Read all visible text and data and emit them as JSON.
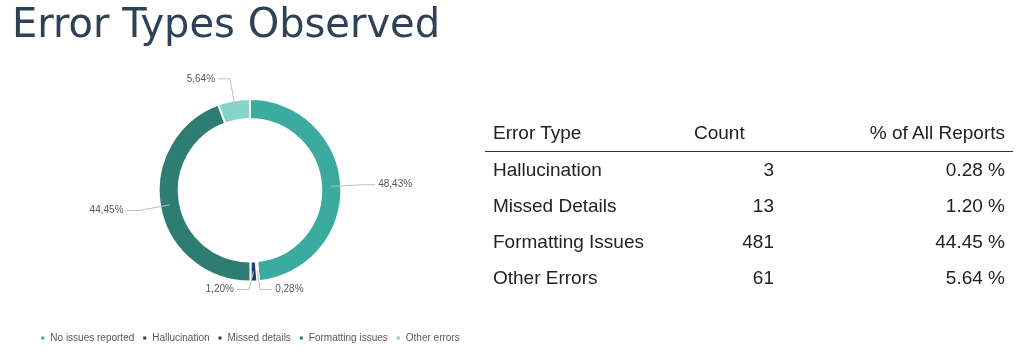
{
  "chart_data": [
    {
      "type": "donut",
      "title": "Error Types Observed",
      "categories": [
        "No issues reported",
        "Hallucination",
        "Missed details",
        "Formatting issues",
        "Other errors"
      ],
      "values": [
        48.43,
        0.28,
        1.2,
        44.45,
        5.64
      ],
      "value_labels": [
        "48,43%",
        "0,28%",
        "1,20%",
        "44,45%",
        "5,64%"
      ],
      "colors": [
        "#3cab9f",
        "#1f3f6e",
        "#1f3f6e",
        "#2d7d72",
        "#84d4cc"
      ],
      "legend": "bottom"
    },
    {
      "type": "other",
      "annotations": [
        "Error Type",
        "Count",
        "% of All Reports",
        "Hallucination",
        "3",
        "0.28 %",
        "Missed Details",
        "13",
        "1.20 %",
        "Formatting Issues",
        "481",
        "44.45 %",
        "Other Errors",
        "61",
        "5.64 %"
      ]
    }
  ]
}
